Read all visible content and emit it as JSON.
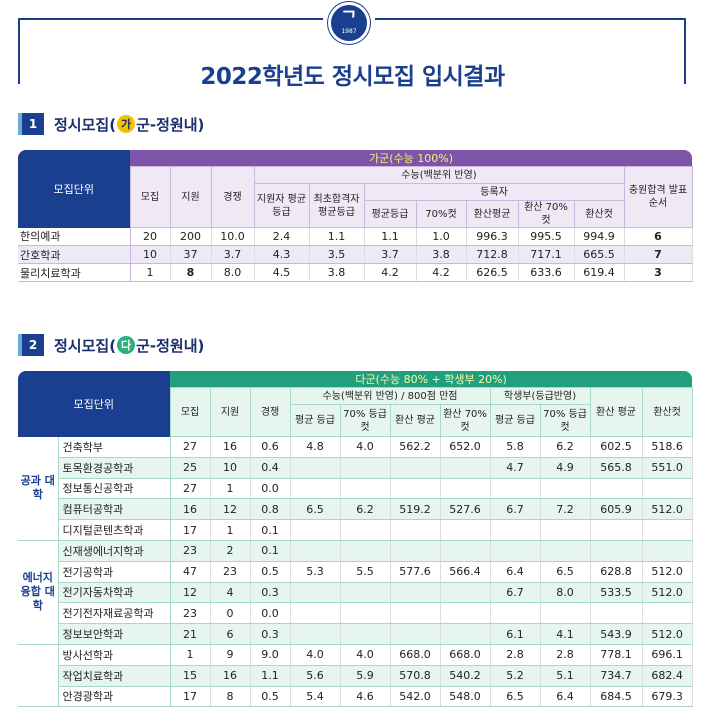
{
  "logo": {
    "year": "1987"
  },
  "title": "2022학년도 정시모집 입시결과",
  "section1": {
    "num": "1",
    "title_pre": "정시모집(",
    "badge": "가",
    "title_post": "군-정원내)",
    "headers": {
      "unit": "모집단위",
      "group": "가군(수능 100%)",
      "recruit": "모집",
      "apply": "지원",
      "ratio": "경쟁",
      "suneung": "수능(백분위 반영)",
      "app_avg": "지원자 평균등급",
      "final_avg": "최초합격자 평균등급",
      "registered": "등록자",
      "reg_avg": "평균등급",
      "cut70": "70%컷",
      "conv_avg": "환산평균",
      "conv70": "환산 70%컷",
      "conv_cut": "환산컷",
      "order": "충원합격 발표순서"
    },
    "rows": [
      [
        "한의예과",
        "20",
        "200",
        "10.0",
        "2.4",
        "1.1",
        "1.1",
        "1.0",
        "996.3",
        "995.5",
        "994.9",
        "6"
      ],
      [
        "간호학과",
        "10",
        "37",
        "3.7",
        "4.3",
        "3.5",
        "3.7",
        "3.8",
        "712.8",
        "717.1",
        "665.5",
        "7"
      ],
      [
        "물리치료학과",
        "1",
        "8",
        "8.0",
        "4.5",
        "3.8",
        "4.2",
        "4.2",
        "626.5",
        "633.6",
        "619.4",
        "3"
      ]
    ]
  },
  "section2": {
    "num": "2",
    "title_pre": "정시모집(",
    "badge": "다",
    "title_post": "군-정원내)",
    "headers": {
      "unit": "모집단위",
      "group": "다군(수능 80% + 학생부 20%)",
      "recruit": "모집",
      "apply": "지원",
      "ratio": "경쟁",
      "suneung": "수능(백분위 반영) / 800점 만점",
      "record": "학생부(등급반영)",
      "s_avg": "평균 등급",
      "s_70": "70% 등급컷",
      "s_conv": "환산 평균",
      "s_conv70": "환산 70%컷",
      "r_avg": "평균 등급",
      "r_70": "70% 등급컷",
      "conv_avg": "환산 평균",
      "conv_cut": "환산컷"
    },
    "groups": [
      {
        "name": "공과 대학",
        "rows": [
          [
            "건축학부",
            "27",
            "16",
            "0.6",
            "4.8",
            "4.0",
            "562.2",
            "652.0",
            "5.8",
            "6.2",
            "602.5",
            "518.6"
          ],
          [
            "토목환경공학과",
            "25",
            "10",
            "0.4",
            "",
            "",
            "",
            "",
            "4.7",
            "4.9",
            "565.8",
            "551.0"
          ],
          [
            "정보통신공학과",
            "27",
            "1",
            "0.0",
            "",
            "",
            "",
            "",
            "",
            "",
            "",
            ""
          ],
          [
            "컴퓨터공학과",
            "16",
            "12",
            "0.8",
            "6.5",
            "6.2",
            "519.2",
            "527.6",
            "6.7",
            "7.2",
            "605.9",
            "512.0"
          ],
          [
            "디지털콘텐츠학과",
            "17",
            "1",
            "0.1",
            "",
            "",
            "",
            "",
            "",
            "",
            "",
            ""
          ]
        ]
      },
      {
        "name": "에너지 융합 대학",
        "rows": [
          [
            "신재생에너지학과",
            "23",
            "2",
            "0.1",
            "",
            "",
            "",
            "",
            "",
            "",
            "",
            ""
          ],
          [
            "전기공학과",
            "47",
            "23",
            "0.5",
            "5.3",
            "5.5",
            "577.6",
            "566.4",
            "6.4",
            "6.5",
            "628.8",
            "512.0"
          ],
          [
            "전기자동차학과",
            "12",
            "4",
            "0.3",
            "",
            "",
            "",
            "",
            "6.7",
            "8.0",
            "533.5",
            "512.0"
          ],
          [
            "전기전자재료공학과",
            "23",
            "0",
            "0.0",
            "",
            "",
            "",
            "",
            "",
            "",
            "",
            ""
          ],
          [
            "정보보안학과",
            "21",
            "6",
            "0.3",
            "",
            "",
            "",
            "",
            "6.1",
            "4.1",
            "543.9",
            "512.0"
          ]
        ]
      },
      {
        "name": "",
        "rows": [
          [
            "방사선학과",
            "1",
            "9",
            "9.0",
            "4.0",
            "4.0",
            "668.0",
            "668.0",
            "2.8",
            "2.8",
            "778.1",
            "696.1"
          ],
          [
            "작업치료학과",
            "15",
            "16",
            "1.1",
            "5.6",
            "5.9",
            "570.8",
            "540.2",
            "5.2",
            "5.1",
            "734.7",
            "682.4"
          ],
          [
            "안경광학과",
            "17",
            "8",
            "0.5",
            "5.4",
            "4.6",
            "542.0",
            "548.0",
            "6.5",
            "6.4",
            "684.5",
            "679.3"
          ]
        ]
      }
    ]
  }
}
